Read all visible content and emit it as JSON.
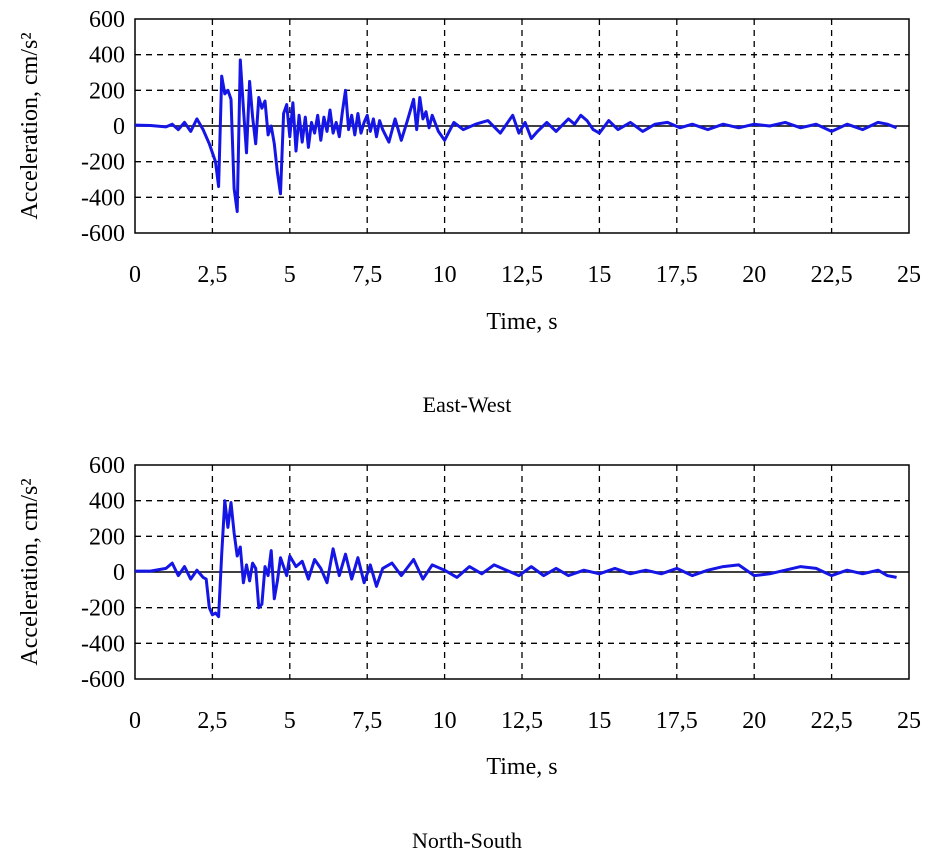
{
  "chart_data": [
    {
      "type": "line",
      "title": "",
      "caption": "East-West",
      "xlabel": "Time, s",
      "ylabel": "Acceleration, cm/s²",
      "xlim": [
        0,
        25
      ],
      "ylim": [
        -600,
        600
      ],
      "x_ticks": [
        0,
        2.5,
        5,
        7.5,
        10,
        12.5,
        15,
        17.5,
        20,
        22.5,
        25
      ],
      "x_tick_labels": [
        "0",
        "2,5",
        "5",
        "7,5",
        "10",
        "12,5",
        "15",
        "17,5",
        "20",
        "22,5",
        "25"
      ],
      "y_ticks": [
        600,
        400,
        200,
        0,
        -200,
        -400,
        -600
      ],
      "y_tick_labels": [
        "600",
        "400",
        "200",
        "0",
        "-200",
        "-400",
        "-600"
      ],
      "grid": true,
      "series": [
        {
          "color": "#1515e6",
          "x": [
            0,
            0.5,
            1.0,
            1.2,
            1.4,
            1.6,
            1.8,
            2.0,
            2.2,
            2.4,
            2.5,
            2.6,
            2.7,
            2.8,
            2.9,
            3.0,
            3.1,
            3.2,
            3.3,
            3.4,
            3.5,
            3.6,
            3.7,
            3.8,
            3.9,
            4.0,
            4.1,
            4.2,
            4.3,
            4.4,
            4.5,
            4.6,
            4.7,
            4.8,
            4.9,
            5.0,
            5.1,
            5.2,
            5.3,
            5.4,
            5.5,
            5.6,
            5.7,
            5.8,
            5.9,
            6.0,
            6.1,
            6.2,
            6.3,
            6.4,
            6.5,
            6.6,
            6.7,
            6.8,
            6.9,
            7.0,
            7.1,
            7.2,
            7.3,
            7.4,
            7.5,
            7.6,
            7.7,
            7.8,
            7.9,
            8.0,
            8.2,
            8.4,
            8.6,
            8.8,
            9.0,
            9.1,
            9.2,
            9.3,
            9.4,
            9.5,
            9.6,
            9.8,
            10.0,
            10.3,
            10.6,
            11.0,
            11.4,
            11.8,
            12.2,
            12.4,
            12.6,
            12.8,
            13.0,
            13.3,
            13.6,
            14.0,
            14.2,
            14.4,
            14.6,
            14.8,
            15.0,
            15.3,
            15.6,
            16.0,
            16.4,
            16.8,
            17.2,
            17.6,
            18.0,
            18.5,
            19.0,
            19.5,
            20.0,
            20.5,
            21.0,
            21.5,
            22.0,
            22.5,
            23.0,
            23.5,
            24.0,
            24.3,
            24.6
          ],
          "y": [
            5,
            3,
            -5,
            10,
            -20,
            20,
            -30,
            40,
            -20,
            -100,
            -150,
            -200,
            -340,
            280,
            180,
            200,
            150,
            -350,
            -480,
            370,
            100,
            -150,
            250,
            50,
            -100,
            160,
            100,
            140,
            -50,
            0,
            -100,
            -260,
            -380,
            70,
            120,
            -60,
            130,
            -140,
            60,
            -90,
            50,
            -120,
            20,
            -40,
            60,
            -80,
            50,
            -30,
            90,
            -40,
            20,
            -60,
            80,
            200,
            -20,
            60,
            -50,
            70,
            -40,
            20,
            60,
            -30,
            40,
            -60,
            30,
            -20,
            -90,
            40,
            -80,
            30,
            150,
            -20,
            160,
            40,
            80,
            -10,
            60,
            -30,
            -80,
            20,
            -20,
            10,
            30,
            -40,
            60,
            -40,
            20,
            -70,
            -30,
            20,
            -30,
            40,
            10,
            60,
            30,
            -20,
            -40,
            30,
            -20,
            20,
            -30,
            10,
            20,
            -10,
            10,
            -20,
            10,
            -10,
            10,
            0,
            20,
            -10,
            10,
            -30,
            10,
            -20,
            20,
            10,
            -10
          ]
        }
      ]
    },
    {
      "type": "line",
      "title": "",
      "caption": "North-South",
      "xlabel": "Time, s",
      "ylabel": "Acceleration, cm/s²",
      "xlim": [
        0,
        25
      ],
      "ylim": [
        -600,
        600
      ],
      "x_ticks": [
        0,
        2.5,
        5,
        7.5,
        10,
        12.5,
        15,
        17.5,
        20,
        22.5,
        25
      ],
      "x_tick_labels": [
        "0",
        "2,5",
        "5",
        "7,5",
        "10",
        "12,5",
        "15",
        "17,5",
        "20",
        "22,5",
        "25"
      ],
      "y_ticks": [
        600,
        400,
        200,
        0,
        -200,
        -400,
        -600
      ],
      "y_tick_labels": [
        "600",
        "400",
        "200",
        "0",
        "-200",
        "-400",
        "-600"
      ],
      "grid": true,
      "series": [
        {
          "color": "#1515e6",
          "x": [
            0,
            0.5,
            1.0,
            1.2,
            1.4,
            1.6,
            1.8,
            2.0,
            2.2,
            2.3,
            2.4,
            2.5,
            2.6,
            2.7,
            2.8,
            2.9,
            3.0,
            3.1,
            3.2,
            3.3,
            3.4,
            3.5,
            3.6,
            3.7,
            3.8,
            3.9,
            4.0,
            4.1,
            4.2,
            4.3,
            4.4,
            4.5,
            4.6,
            4.7,
            4.8,
            4.9,
            5.0,
            5.2,
            5.4,
            5.6,
            5.8,
            6.0,
            6.2,
            6.4,
            6.6,
            6.8,
            7.0,
            7.2,
            7.4,
            7.6,
            7.8,
            8.0,
            8.3,
            8.6,
            9.0,
            9.3,
            9.6,
            10.0,
            10.4,
            10.8,
            11.2,
            11.6,
            12.0,
            12.4,
            12.8,
            13.2,
            13.6,
            14.0,
            14.5,
            15.0,
            15.5,
            16.0,
            16.5,
            17.0,
            17.5,
            18.0,
            18.5,
            19.0,
            19.5,
            20.0,
            20.5,
            21.0,
            21.5,
            22.0,
            22.5,
            23.0,
            23.5,
            24.0,
            24.3,
            24.6
          ],
          "y": [
            5,
            5,
            20,
            50,
            -20,
            30,
            -40,
            10,
            -30,
            -40,
            -200,
            -240,
            -230,
            -250,
            100,
            400,
            250,
            390,
            220,
            90,
            140,
            -60,
            40,
            -50,
            50,
            20,
            -200,
            -180,
            30,
            -20,
            120,
            -150,
            -50,
            80,
            30,
            -20,
            90,
            30,
            60,
            -40,
            70,
            20,
            -60,
            130,
            -20,
            100,
            -40,
            80,
            -60,
            40,
            -80,
            20,
            50,
            -20,
            70,
            -40,
            40,
            10,
            -30,
            30,
            -10,
            40,
            10,
            -20,
            30,
            -20,
            20,
            -20,
            10,
            -10,
            20,
            -10,
            10,
            -10,
            20,
            -20,
            10,
            30,
            40,
            -20,
            -10,
            10,
            30,
            20,
            -20,
            10,
            -10,
            10,
            -20,
            -30
          ]
        }
      ]
    }
  ]
}
